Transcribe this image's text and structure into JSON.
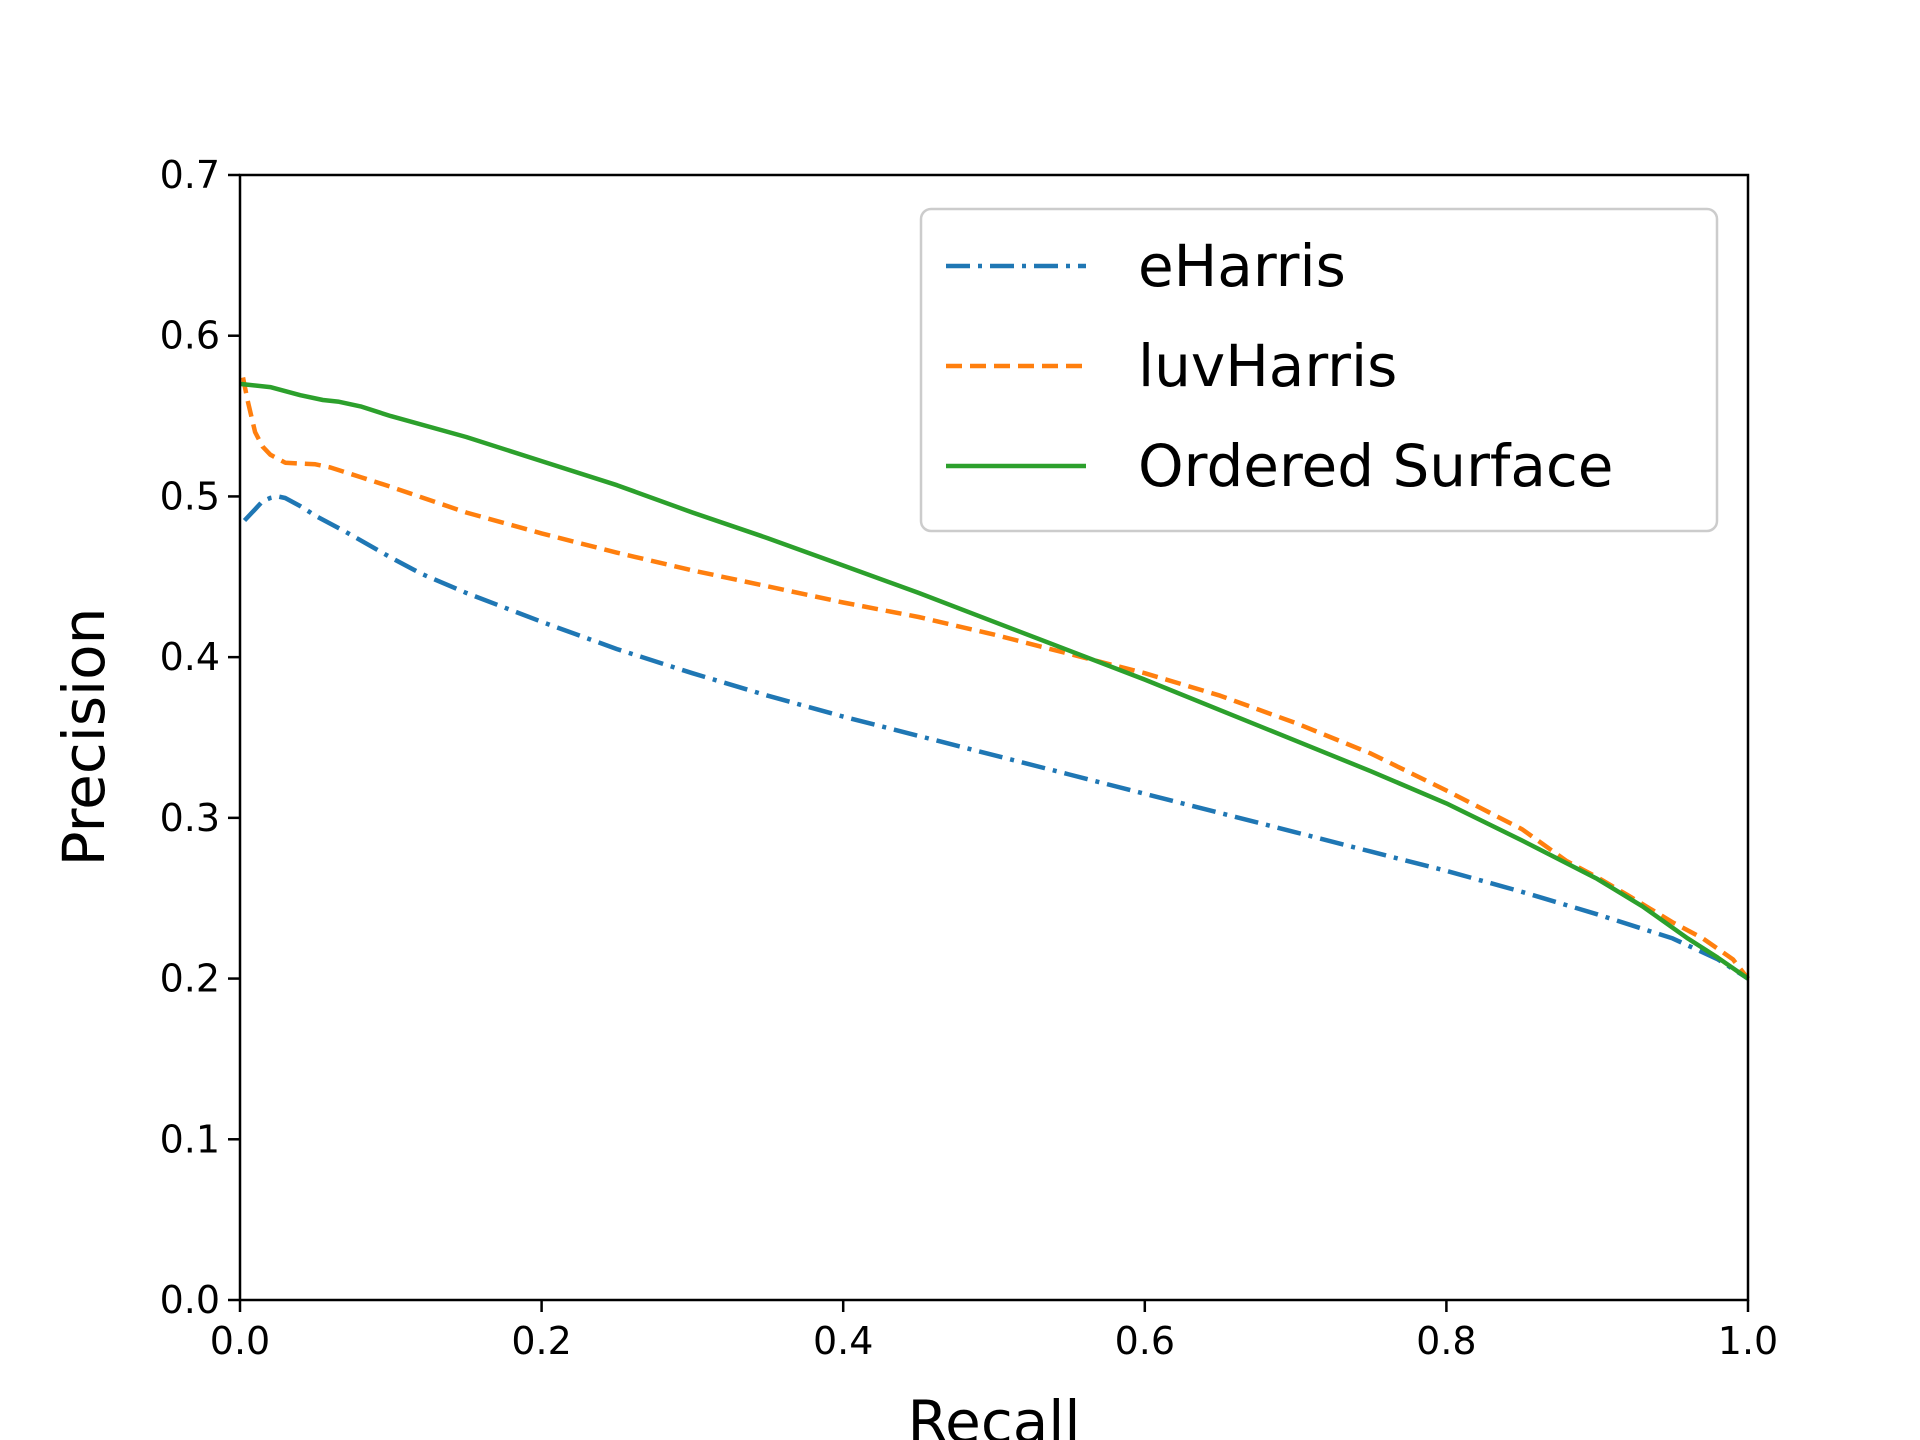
{
  "chart_data": {
    "type": "line",
    "xlabel": "Recall",
    "ylabel": "Precision",
    "xlim": [
      0.0,
      1.0
    ],
    "ylim": [
      0.0,
      0.7
    ],
    "x_ticks": [
      "0.0",
      "0.2",
      "0.4",
      "0.6",
      "0.8",
      "1.0"
    ],
    "y_ticks": [
      "0.0",
      "0.1",
      "0.2",
      "0.3",
      "0.4",
      "0.5",
      "0.6",
      "0.7"
    ],
    "grid": false,
    "legend_position": "top-right",
    "series": [
      {
        "name": "eHarris",
        "color": "#1f77b4",
        "dash": "dashdot",
        "points": [
          [
            0.003,
            0.485
          ],
          [
            0.01,
            0.492
          ],
          [
            0.015,
            0.497
          ],
          [
            0.02,
            0.499
          ],
          [
            0.025,
            0.5
          ],
          [
            0.03,
            0.499
          ],
          [
            0.04,
            0.494
          ],
          [
            0.05,
            0.488
          ],
          [
            0.07,
            0.478
          ],
          [
            0.1,
            0.462
          ],
          [
            0.12,
            0.452
          ],
          [
            0.15,
            0.44
          ],
          [
            0.2,
            0.422
          ],
          [
            0.25,
            0.405
          ],
          [
            0.3,
            0.39
          ],
          [
            0.35,
            0.376
          ],
          [
            0.4,
            0.363
          ],
          [
            0.45,
            0.351
          ],
          [
            0.5,
            0.339
          ],
          [
            0.55,
            0.327
          ],
          [
            0.6,
            0.315
          ],
          [
            0.65,
            0.303
          ],
          [
            0.7,
            0.291
          ],
          [
            0.75,
            0.279
          ],
          [
            0.8,
            0.267
          ],
          [
            0.85,
            0.254
          ],
          [
            0.9,
            0.24
          ],
          [
            0.95,
            0.225
          ],
          [
            0.98,
            0.212
          ],
          [
            1.0,
            0.2
          ]
        ]
      },
      {
        "name": "luvHarris",
        "color": "#ff7f0e",
        "dash": "dashed",
        "points": [
          [
            0.002,
            0.574
          ],
          [
            0.005,
            0.56
          ],
          [
            0.01,
            0.54
          ],
          [
            0.015,
            0.531
          ],
          [
            0.02,
            0.526
          ],
          [
            0.03,
            0.521
          ],
          [
            0.05,
            0.52
          ],
          [
            0.06,
            0.518
          ],
          [
            0.08,
            0.512
          ],
          [
            0.1,
            0.506
          ],
          [
            0.15,
            0.49
          ],
          [
            0.2,
            0.477
          ],
          [
            0.25,
            0.465
          ],
          [
            0.3,
            0.454
          ],
          [
            0.35,
            0.444
          ],
          [
            0.4,
            0.434
          ],
          [
            0.45,
            0.425
          ],
          [
            0.5,
            0.414
          ],
          [
            0.55,
            0.402
          ],
          [
            0.6,
            0.39
          ],
          [
            0.65,
            0.376
          ],
          [
            0.7,
            0.359
          ],
          [
            0.75,
            0.34
          ],
          [
            0.8,
            0.317
          ],
          [
            0.85,
            0.293
          ],
          [
            0.88,
            0.273
          ],
          [
            0.9,
            0.263
          ],
          [
            0.92,
            0.252
          ],
          [
            0.95,
            0.235
          ],
          [
            0.97,
            0.225
          ],
          [
            0.99,
            0.212
          ],
          [
            1.0,
            0.2
          ]
        ]
      },
      {
        "name": "Ordered Surface",
        "color": "#2ca02c",
        "dash": "solid",
        "points": [
          [
            0.0,
            0.57
          ],
          [
            0.02,
            0.568
          ],
          [
            0.04,
            0.563
          ],
          [
            0.055,
            0.56
          ],
          [
            0.065,
            0.559
          ],
          [
            0.08,
            0.556
          ],
          [
            0.1,
            0.55
          ],
          [
            0.15,
            0.537
          ],
          [
            0.2,
            0.522
          ],
          [
            0.25,
            0.507
          ],
          [
            0.3,
            0.49
          ],
          [
            0.35,
            0.474
          ],
          [
            0.4,
            0.457
          ],
          [
            0.45,
            0.44
          ],
          [
            0.5,
            0.422
          ],
          [
            0.55,
            0.404
          ],
          [
            0.6,
            0.386
          ],
          [
            0.65,
            0.367
          ],
          [
            0.7,
            0.348
          ],
          [
            0.75,
            0.329
          ],
          [
            0.8,
            0.309
          ],
          [
            0.85,
            0.286
          ],
          [
            0.9,
            0.262
          ],
          [
            0.93,
            0.245
          ],
          [
            0.96,
            0.225
          ],
          [
            0.98,
            0.213
          ],
          [
            1.0,
            0.2
          ]
        ]
      }
    ]
  }
}
